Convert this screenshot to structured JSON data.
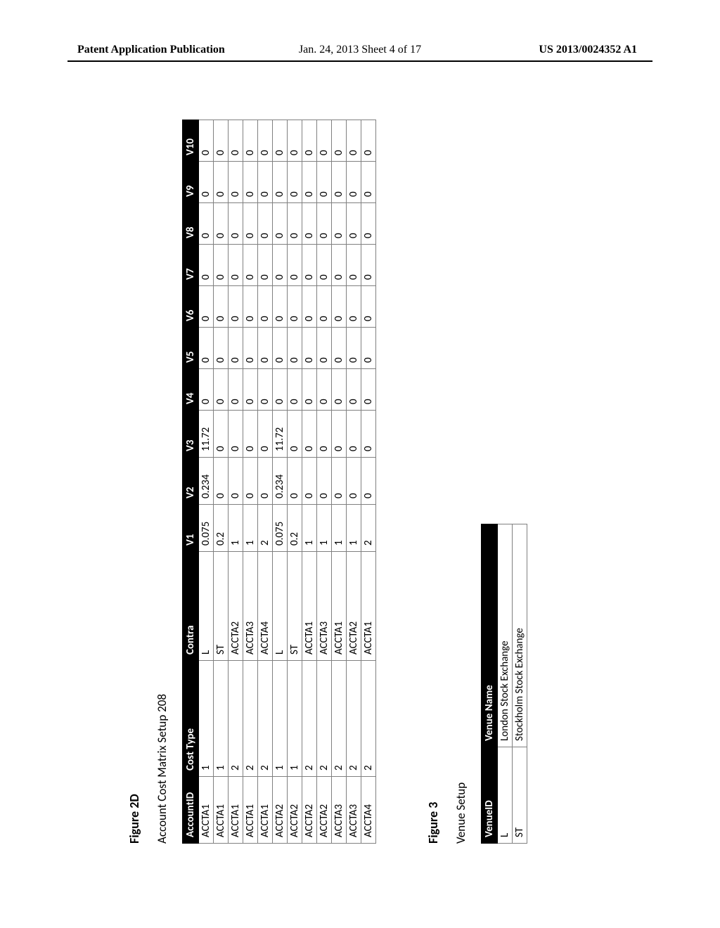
{
  "header": {
    "left": "Patent Application Publication",
    "middle": "Jan. 24, 2013  Sheet 4 of 17",
    "right": "US 2013/0024352 A1"
  },
  "figure2d": {
    "label": "Figure 2D",
    "subtitle": "Account Cost Matrix Setup 208",
    "columns": [
      "AccountID",
      "Cost Type",
      "Contra",
      "V1",
      "V2",
      "V3",
      "V4",
      "V5",
      "V6",
      "V7",
      "V8",
      "V9",
      "V10"
    ],
    "rows": [
      [
        "ACCTA1",
        "1",
        "L",
        "0.075",
        "0.234",
        "11.72",
        "0",
        "0",
        "0",
        "0",
        "0",
        "0",
        "0"
      ],
      [
        "ACCTA1",
        "1",
        "ST",
        "0.2",
        "0",
        "0",
        "0",
        "0",
        "0",
        "0",
        "0",
        "0",
        "0"
      ],
      [
        "ACCTA1",
        "2",
        "ACCTA2",
        "1",
        "0",
        "0",
        "0",
        "0",
        "0",
        "0",
        "0",
        "0",
        "0"
      ],
      [
        "ACCTA1",
        "2",
        "ACCTA3",
        "1",
        "0",
        "0",
        "0",
        "0",
        "0",
        "0",
        "0",
        "0",
        "0"
      ],
      [
        "ACCTA1",
        "2",
        "ACCTA4",
        "2",
        "0",
        "0",
        "0",
        "0",
        "0",
        "0",
        "0",
        "0",
        "0"
      ],
      [
        "ACCTA2",
        "1",
        "L",
        "0.075",
        "0.234",
        "11.72",
        "0",
        "0",
        "0",
        "0",
        "0",
        "0",
        "0"
      ],
      [
        "ACCTA2",
        "1",
        "ST",
        "0.2",
        "0",
        "0",
        "0",
        "0",
        "0",
        "0",
        "0",
        "0",
        "0"
      ],
      [
        "ACCTA2",
        "2",
        "ACCTA1",
        "1",
        "0",
        "0",
        "0",
        "0",
        "0",
        "0",
        "0",
        "0",
        "0"
      ],
      [
        "ACCTA2",
        "2",
        "ACCTA3",
        "1",
        "0",
        "0",
        "0",
        "0",
        "0",
        "0",
        "0",
        "0",
        "0"
      ],
      [
        "ACCTA3",
        "2",
        "ACCTA1",
        "1",
        "0",
        "0",
        "0",
        "0",
        "0",
        "0",
        "0",
        "0",
        "0"
      ],
      [
        "ACCTA3",
        "2",
        "ACCTA2",
        "1",
        "0",
        "0",
        "0",
        "0",
        "0",
        "0",
        "0",
        "0",
        "0"
      ],
      [
        "ACCTA4",
        "2",
        "ACCTA1",
        "2",
        "0",
        "0",
        "0",
        "0",
        "0",
        "0",
        "0",
        "0",
        "0"
      ]
    ],
    "header_bg": "#000000",
    "header_fg": "#ffffff",
    "cell_border": "#808080",
    "font_size": 15
  },
  "figure3": {
    "label": "Figure 3",
    "subtitle": "Venue Setup",
    "columns": [
      "VenueID",
      "Venue Name"
    ],
    "rows": [
      [
        "L",
        "London Stock Exchange"
      ],
      [
        "ST",
        "Stockholm Stock Exchange"
      ]
    ],
    "header_bg": "#000000",
    "header_fg": "#ffffff",
    "cell_border": "#808080",
    "font_size": 15
  }
}
